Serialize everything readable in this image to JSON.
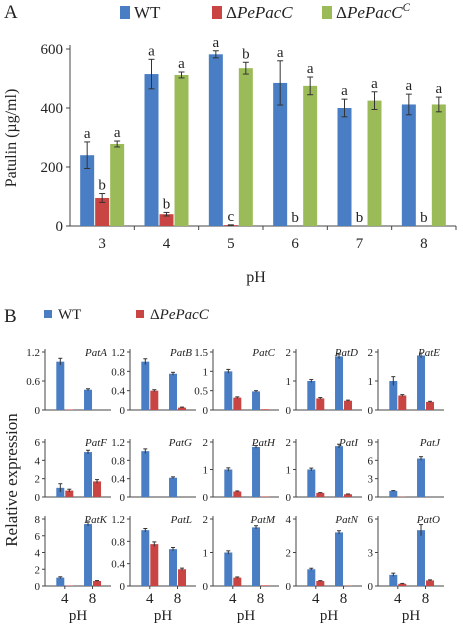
{
  "colors": {
    "wt": "#4a7ec4",
    "ko": "#c94543",
    "comp": "#9bbb59",
    "axis": "#444444",
    "text": "#222222"
  },
  "panel_a": {
    "letter": "A",
    "ylabel": "Patulin (µg/ml)",
    "xlabel": "pH",
    "legend": [
      {
        "label": "WT",
        "prefix": "",
        "italic": "",
        "sup": ""
      },
      {
        "label": "ΔPePacC",
        "prefix": "Δ",
        "italic": "PePacC",
        "sup": ""
      },
      {
        "label": "ΔPePacC^C",
        "prefix": "Δ",
        "italic": "PePacC",
        "sup": "C"
      }
    ]
  },
  "panel_b": {
    "letter": "B",
    "ylabel": "Relative expression",
    "xlabel": "pH",
    "legend": [
      {
        "label": "WT",
        "prefix": "",
        "italic": "",
        "sup": ""
      },
      {
        "label": "ΔPePacC",
        "prefix": "Δ",
        "italic": "PePacC",
        "sup": ""
      }
    ]
  },
  "chart_data": [
    {
      "type": "bar",
      "categories": [
        "3",
        "4",
        "5",
        "6",
        "7",
        "8"
      ],
      "ylim": [
        0,
        600
      ],
      "yticks": [
        "0",
        "200",
        "400",
        "600"
      ],
      "ylabel": "Patulin (µg/ml)",
      "xlabel": "pH",
      "legend_position": "top",
      "series": [
        {
          "name": "WT",
          "values": [
            240,
            515,
            582,
            485,
            400,
            412
          ],
          "errors": [
            45,
            50,
            12,
            75,
            30,
            35
          ],
          "labels": [
            "a",
            "a",
            "a",
            "a",
            "a",
            "a"
          ]
        },
        {
          "name": "ΔPePacC",
          "values": [
            95,
            40,
            3,
            0,
            0,
            0
          ],
          "errors": [
            15,
            6,
            1,
            0,
            0,
            0
          ],
          "labels": [
            "b",
            "b",
            "c",
            "b",
            "b",
            "b"
          ]
        },
        {
          "name": "ΔPePacC^C",
          "values": [
            278,
            512,
            535,
            475,
            425,
            412
          ],
          "errors": [
            10,
            10,
            20,
            30,
            30,
            25
          ],
          "labels": [
            "a",
            "a",
            "b",
            "a",
            "a",
            "a"
          ]
        }
      ]
    },
    {
      "type": "bar",
      "categories": [
        "4",
        "8"
      ],
      "xlabel": "pH",
      "ylabel": "Relative expression",
      "legend_position": "top",
      "series_names": [
        "WT",
        "ΔPePacC"
      ],
      "subplots": [
        {
          "gene": "PatA",
          "yticks": [
            "0",
            "0.6",
            "1.2"
          ],
          "ylim": [
            0,
            1.2
          ],
          "wt": [
            1.0,
            0.42
          ],
          "ko": [
            0.01,
            0.0
          ],
          "wt_err": [
            0.07,
            0.02
          ],
          "ko_err": [
            0,
            0
          ]
        },
        {
          "gene": "PatB",
          "yticks": [
            "0",
            "0.4",
            "0.8",
            "1.2"
          ],
          "ylim": [
            0,
            1.2
          ],
          "wt": [
            1.0,
            0.75
          ],
          "ko": [
            0.4,
            0.05
          ],
          "wt_err": [
            0.06,
            0.03
          ],
          "ko_err": [
            0.02,
            0.01
          ]
        },
        {
          "gene": "PatC",
          "yticks": [
            "0",
            "0.5",
            "1",
            "1.5"
          ],
          "ylim": [
            0,
            1.5
          ],
          "wt": [
            1.0,
            0.48
          ],
          "ko": [
            0.32,
            0.02
          ],
          "wt_err": [
            0.05,
            0.02
          ],
          "ko_err": [
            0.02,
            0
          ]
        },
        {
          "gene": "PatD",
          "yticks": [
            "0",
            "1",
            "2"
          ],
          "ylim": [
            0,
            2
          ],
          "wt": [
            1.0,
            1.85
          ],
          "ko": [
            0.4,
            0.32
          ],
          "wt_err": [
            0.05,
            0.08
          ],
          "ko_err": [
            0.03,
            0.02
          ]
        },
        {
          "gene": "PatE",
          "yticks": [
            "0",
            "1",
            "2"
          ],
          "ylim": [
            0,
            2
          ],
          "wt": [
            1.0,
            1.88
          ],
          "ko": [
            0.5,
            0.28
          ],
          "wt_err": [
            0.15,
            0.08
          ],
          "ko_err": [
            0.03,
            0.02
          ]
        },
        {
          "gene": "PatF",
          "yticks": [
            "0",
            "2",
            "4",
            "6"
          ],
          "ylim": [
            0,
            6
          ],
          "wt": [
            1.0,
            4.9
          ],
          "ko": [
            0.7,
            1.7
          ],
          "wt_err": [
            0.45,
            0.2
          ],
          "ko_err": [
            0.15,
            0.2
          ]
        },
        {
          "gene": "PatG",
          "yticks": [
            "0",
            "0.4",
            "0.8",
            "1.2"
          ],
          "ylim": [
            0,
            1.2
          ],
          "wt": [
            1.0,
            0.42
          ],
          "ko": [
            0.0,
            0.0
          ],
          "wt_err": [
            0.05,
            0.02
          ],
          "ko_err": [
            0,
            0
          ]
        },
        {
          "gene": "PatH",
          "yticks": [
            "0",
            "1",
            "2"
          ],
          "ylim": [
            0,
            2
          ],
          "wt": [
            1.0,
            1.82
          ],
          "ko": [
            0.2,
            0.02
          ],
          "wt_err": [
            0.06,
            0.05
          ],
          "ko_err": [
            0.02,
            0
          ]
        },
        {
          "gene": "PatI",
          "yticks": [
            "0",
            "1",
            "2"
          ],
          "ylim": [
            0,
            2
          ],
          "wt": [
            1.0,
            1.85
          ],
          "ko": [
            0.15,
            0.1
          ],
          "wt_err": [
            0.05,
            0.07
          ],
          "ko_err": [
            0.01,
            0.01
          ]
        },
        {
          "gene": "PatJ",
          "yticks": [
            "0",
            "3",
            "6",
            "9"
          ],
          "ylim": [
            0,
            9
          ],
          "wt": [
            1.0,
            6.3
          ],
          "ko": [
            0.05,
            0.0
          ],
          "wt_err": [
            0.05,
            0.3
          ],
          "ko_err": [
            0,
            0
          ]
        },
        {
          "gene": "PatK",
          "yticks": [
            "0",
            "2",
            "4",
            "6",
            "8"
          ],
          "ylim": [
            0,
            8
          ],
          "wt": [
            1.0,
            7.4
          ],
          "ko": [
            0.05,
            0.6
          ],
          "wt_err": [
            0.1,
            0.25
          ],
          "ko_err": [
            0,
            0.05
          ]
        },
        {
          "gene": "PatL",
          "yticks": [
            "0",
            "0.4",
            "0.8",
            "1.2"
          ],
          "ylim": [
            0,
            1.2
          ],
          "wt": [
            1.0,
            0.66
          ],
          "ko": [
            0.75,
            0.3
          ],
          "wt_err": [
            0.03,
            0.03
          ],
          "ko_err": [
            0.04,
            0.02
          ]
        },
        {
          "gene": "PatM",
          "yticks": [
            "0",
            "1",
            "2"
          ],
          "ylim": [
            0,
            2
          ],
          "wt": [
            1.0,
            1.75
          ],
          "ko": [
            0.25,
            0.02
          ],
          "wt_err": [
            0.05,
            0.05
          ],
          "ko_err": [
            0.02,
            0
          ]
        },
        {
          "gene": "PatN",
          "yticks": [
            "0",
            "2",
            "4"
          ],
          "ylim": [
            0,
            4
          ],
          "wt": [
            1.0,
            3.2
          ],
          "ko": [
            0.3,
            0.02
          ],
          "wt_err": [
            0.06,
            0.1
          ],
          "ko_err": [
            0.02,
            0
          ]
        },
        {
          "gene": "PatO",
          "yticks": [
            "0",
            "3",
            "6"
          ],
          "ylim": [
            0,
            6
          ],
          "wt": [
            1.0,
            5.0
          ],
          "ko": [
            0.2,
            0.5
          ],
          "wt_err": [
            0.15,
            0.5
          ],
          "ko_err": [
            0.03,
            0.05
          ]
        }
      ]
    }
  ]
}
